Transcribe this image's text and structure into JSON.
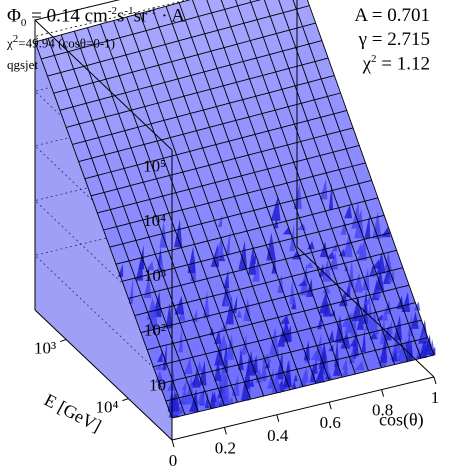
{
  "annotations": {
    "phi_symbol": "Φ",
    "phi_sub": "0",
    "phi_value": " = 0.14 cm",
    "phi_exp1": "-2",
    "phi_s": "s",
    "phi_exp2": "-1",
    "phi_sr": "sr",
    "phi_exp3": "-1",
    "phi_tail": " · A",
    "chi_left_symbol": "χ",
    "chi_left_sup": "2",
    "chi_left_text": "=49.94 (cosθ=0-1)",
    "model": "qgsjet",
    "param_A": "A = 0.701",
    "param_gamma": "γ = 2.715",
    "param_chi_symbol": "χ",
    "param_chi_sup": "2",
    "param_chi_value": " =  1.12"
  },
  "chart_data": {
    "type": "surface",
    "xlabel": "cos(θ)",
    "ylabel": "E [GeV]",
    "x_ticks": [
      "0",
      "0.2",
      "0.4",
      "0.6",
      "0.8",
      "1"
    ],
    "y_ticks": [
      "10³",
      "10⁴"
    ],
    "z_ticks": [
      "10",
      "10²",
      "10³",
      "10⁴",
      "10⁵"
    ],
    "z_scale": "log",
    "x_range": [
      0,
      1
    ],
    "y_range_log10": [
      2.5,
      4.7
    ],
    "z_range_log10": [
      0,
      5.3
    ],
    "surface_log10_at_low_energy": 4.9,
    "surface_log10_at_high_energy": 0.4,
    "grid_lines": "dotted",
    "colors": {
      "surface": "#7070ff",
      "surface_dark": "#1010c0",
      "mesh": "#000000",
      "spikes": "#2020e0"
    }
  }
}
